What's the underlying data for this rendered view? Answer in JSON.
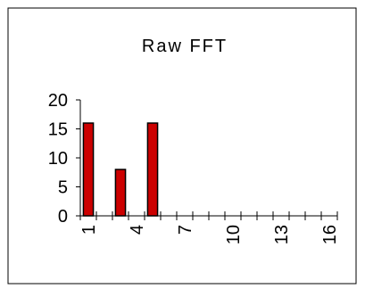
{
  "chart_data": {
    "type": "bar",
    "title": "Raw FFT",
    "xlabel": "",
    "ylabel": "",
    "categories": [
      1,
      2,
      3,
      4,
      5,
      6,
      7,
      8,
      9,
      10,
      11,
      12,
      13,
      14,
      15,
      16
    ],
    "x_tick_labels": [
      "1",
      "4",
      "7",
      "10",
      "13",
      "16"
    ],
    "x_tick_label_values": [
      1,
      4,
      7,
      10,
      13,
      16
    ],
    "values": [
      16,
      0,
      8,
      0,
      16,
      0,
      0,
      0,
      0,
      0,
      0,
      0,
      0,
      0,
      0,
      0
    ],
    "ylim": [
      0,
      20
    ],
    "y_ticks": [
      0,
      5,
      10,
      15,
      20
    ],
    "grid": false,
    "legend": "none",
    "colors": {
      "bar": "#cc0000",
      "axis": "#000000",
      "frame": "#000000"
    }
  }
}
